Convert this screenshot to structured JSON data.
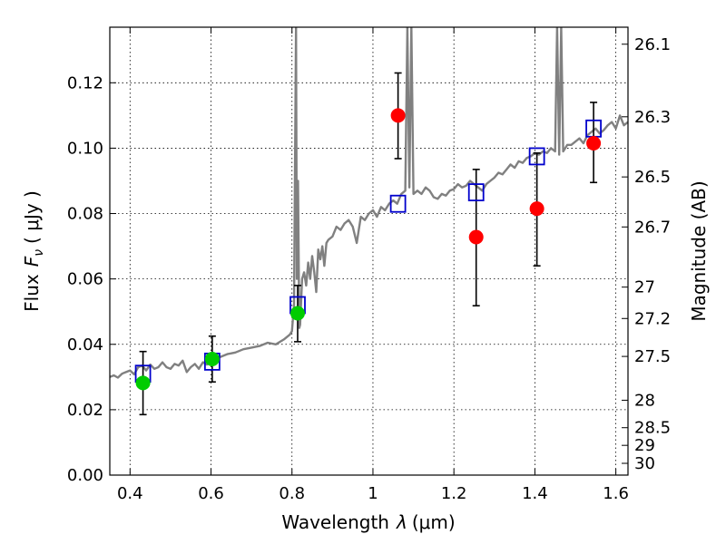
{
  "chart_data": {
    "type": "scatter",
    "xlabel": "Wavelength",
    "xlabel_symbol": "λ",
    "xlabel_unit": "(μm)",
    "ylabel": "Flux",
    "ylabel_symbol": "F",
    "ylabel_subscript": "ν",
    "ylabel_unit": "( μJy )",
    "y2label": "Magnitude (AB)",
    "xlim": [
      0.35,
      1.63
    ],
    "ylim": [
      0.0,
      0.137
    ],
    "grid": true,
    "legend": "none",
    "x_ticks": [
      {
        "value": 0.4,
        "label": "0.4"
      },
      {
        "value": 0.6,
        "label": "0.6"
      },
      {
        "value": 0.8,
        "label": "0.8"
      },
      {
        "value": 1.0,
        "label": "1"
      },
      {
        "value": 1.2,
        "label": "1.2"
      },
      {
        "value": 1.4,
        "label": "1.4"
      },
      {
        "value": 1.6,
        "label": "1.6"
      }
    ],
    "y_ticks": [
      {
        "value": 0.0,
        "label": "0.00"
      },
      {
        "value": 0.02,
        "label": "0.02"
      },
      {
        "value": 0.04,
        "label": "0.04"
      },
      {
        "value": 0.06,
        "label": "0.06"
      },
      {
        "value": 0.08,
        "label": "0.08"
      },
      {
        "value": 0.1,
        "label": "0.10"
      },
      {
        "value": 0.12,
        "label": "0.12"
      }
    ],
    "y2_ticks": [
      {
        "flux": 0.1318,
        "label": "26.1"
      },
      {
        "flux": 0.1096,
        "label": "26.3"
      },
      {
        "flux": 0.0912,
        "label": "26.5"
      },
      {
        "flux": 0.0759,
        "label": "26.7"
      },
      {
        "flux": 0.0575,
        "label": "27"
      },
      {
        "flux": 0.0479,
        "label": "27.2"
      },
      {
        "flux": 0.0363,
        "label": "27.5"
      },
      {
        "flux": 0.0229,
        "label": "28"
      },
      {
        "flux": 0.0145,
        "label": "28.5"
      },
      {
        "flux": 0.0091,
        "label": "29"
      },
      {
        "flux": 0.0036,
        "label": "30"
      }
    ],
    "colors": {
      "spectrum": "#808080",
      "model": "#0000cc",
      "green": "#00cc00",
      "red": "#ff0000",
      "error": "#000000"
    },
    "model_photometry": {
      "name": "model",
      "x": [
        0.432,
        0.603,
        0.814,
        1.062,
        1.255,
        1.405,
        1.545
      ],
      "y": [
        0.031,
        0.0347,
        0.052,
        0.083,
        0.0865,
        0.0975,
        0.106
      ]
    },
    "observed_green": {
      "x": [
        0.432,
        0.603,
        0.814
      ],
      "y": [
        0.0282,
        0.0355,
        0.0495
      ],
      "err_low": [
        0.0185,
        0.0285,
        0.0408
      ],
      "err_high": [
        0.0378,
        0.0425,
        0.058
      ]
    },
    "observed_red": {
      "x": [
        1.062,
        1.255,
        1.405,
        1.545
      ],
      "y": [
        0.11,
        0.0728,
        0.0815,
        0.1015
      ],
      "err_low": [
        0.0968,
        0.0518,
        0.064,
        0.0895
      ],
      "err_high": [
        0.123,
        0.0935,
        0.0985,
        0.114
      ]
    },
    "spectrum": {
      "x": [
        0.35,
        0.36,
        0.37,
        0.38,
        0.39,
        0.4,
        0.41,
        0.42,
        0.43,
        0.44,
        0.45,
        0.46,
        0.47,
        0.48,
        0.49,
        0.5,
        0.51,
        0.52,
        0.53,
        0.54,
        0.55,
        0.56,
        0.57,
        0.58,
        0.59,
        0.6,
        0.62,
        0.64,
        0.66,
        0.68,
        0.7,
        0.72,
        0.74,
        0.76,
        0.78,
        0.795,
        0.8,
        0.805,
        0.81,
        0.812,
        0.815,
        0.818,
        0.82,
        0.825,
        0.83,
        0.835,
        0.84,
        0.845,
        0.85,
        0.855,
        0.86,
        0.865,
        0.87,
        0.875,
        0.88,
        0.885,
        0.89,
        0.9,
        0.91,
        0.92,
        0.93,
        0.94,
        0.95,
        0.96,
        0.97,
        0.98,
        0.99,
        1.0,
        1.01,
        1.02,
        1.03,
        1.04,
        1.05,
        1.06,
        1.07,
        1.08,
        1.085,
        1.09,
        1.095,
        1.1,
        1.11,
        1.12,
        1.13,
        1.14,
        1.15,
        1.16,
        1.17,
        1.18,
        1.19,
        1.2,
        1.21,
        1.22,
        1.23,
        1.24,
        1.25,
        1.26,
        1.27,
        1.28,
        1.29,
        1.3,
        1.31,
        1.32,
        1.33,
        1.34,
        1.35,
        1.36,
        1.37,
        1.38,
        1.39,
        1.4,
        1.41,
        1.42,
        1.43,
        1.44,
        1.45,
        1.455,
        1.46,
        1.465,
        1.47,
        1.475,
        1.48,
        1.49,
        1.5,
        1.51,
        1.52,
        1.53,
        1.54,
        1.55,
        1.56,
        1.57,
        1.58,
        1.59,
        1.6,
        1.61,
        1.62,
        1.63
      ],
      "y": [
        0.03,
        0.0305,
        0.0298,
        0.031,
        0.0315,
        0.032,
        0.0308,
        0.033,
        0.0335,
        0.032,
        0.0338,
        0.0325,
        0.033,
        0.0345,
        0.033,
        0.0325,
        0.034,
        0.0335,
        0.035,
        0.0315,
        0.033,
        0.034,
        0.0325,
        0.0345,
        0.0338,
        0.0345,
        0.036,
        0.037,
        0.0375,
        0.0385,
        0.039,
        0.0395,
        0.0405,
        0.04,
        0.0415,
        0.043,
        0.044,
        0.052,
        0.137,
        0.06,
        0.09,
        0.045,
        0.046,
        0.06,
        0.062,
        0.058,
        0.065,
        0.06,
        0.067,
        0.062,
        0.056,
        0.069,
        0.066,
        0.07,
        0.064,
        0.071,
        0.072,
        0.073,
        0.076,
        0.075,
        0.077,
        0.078,
        0.076,
        0.071,
        0.079,
        0.078,
        0.08,
        0.081,
        0.079,
        0.082,
        0.081,
        0.083,
        0.084,
        0.083,
        0.086,
        0.087,
        0.137,
        0.088,
        0.137,
        0.086,
        0.087,
        0.086,
        0.088,
        0.087,
        0.085,
        0.0845,
        0.086,
        0.0855,
        0.087,
        0.0875,
        0.089,
        0.088,
        0.0885,
        0.09,
        0.089,
        0.088,
        0.087,
        0.089,
        0.09,
        0.091,
        0.0925,
        0.092,
        0.0935,
        0.095,
        0.094,
        0.096,
        0.0955,
        0.097,
        0.0975,
        0.0985,
        0.098,
        0.099,
        0.0985,
        0.1,
        0.099,
        0.137,
        0.098,
        0.137,
        0.099,
        0.1,
        0.101,
        0.101,
        0.102,
        0.103,
        0.1015,
        0.104,
        0.105,
        0.106,
        0.1045,
        0.1055,
        0.107,
        0.108,
        0.106,
        0.11,
        0.107,
        0.108
      ]
    }
  }
}
